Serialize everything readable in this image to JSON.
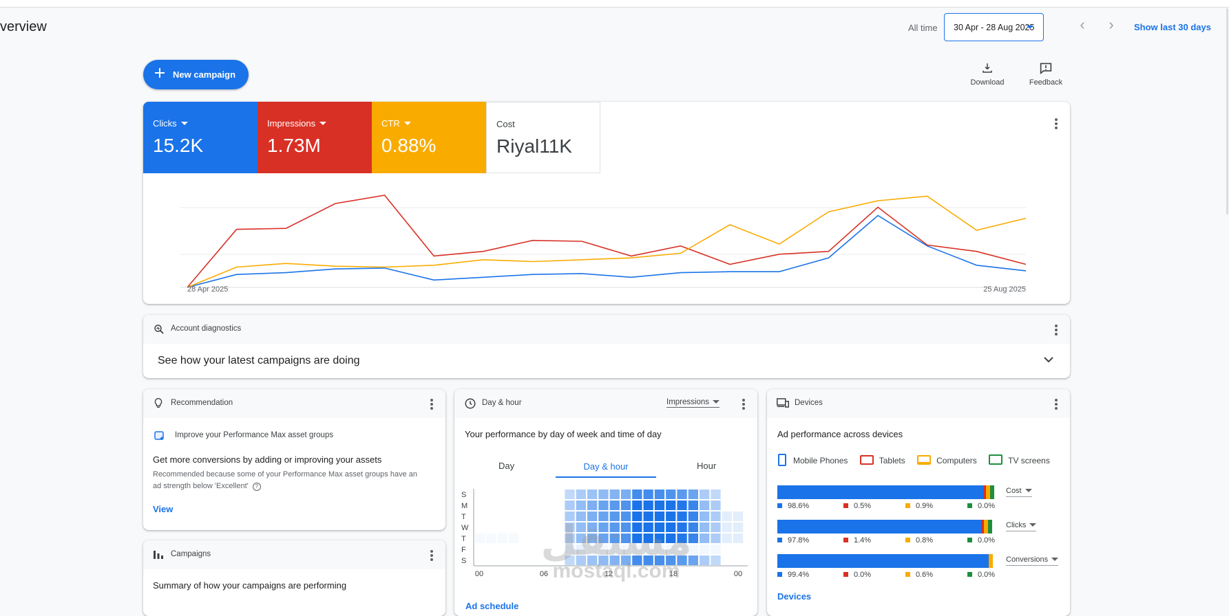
{
  "header": {
    "title": "verview",
    "all_time_label": "All time",
    "date_range": "30 Apr - 28 Aug 2025",
    "show_last_label": "Show last 30 days"
  },
  "toolbar": {
    "new_campaign_label": "New campaign",
    "download_label": "Download",
    "feedback_label": "Feedback"
  },
  "metrics": [
    {
      "name": "Clicks",
      "value": "15.2K",
      "color": "#1a73e8"
    },
    {
      "name": "Impressions",
      "value": "1.73M",
      "color": "#d93025"
    },
    {
      "name": "CTR",
      "value": "0.88%",
      "color": "#f9ab00"
    },
    {
      "name": "Cost",
      "value": "Riyal11K",
      "color": "#ffffff"
    }
  ],
  "chart_data": {
    "type": "line",
    "x_start_label": "28 Apr 2025",
    "x_end_label": "25 Aug 2025",
    "grid": true,
    "series": [
      {
        "name": "Clicks",
        "color": "#1a73e8",
        "values": [
          0,
          14,
          16,
          20,
          21,
          8,
          11,
          14,
          15,
          11,
          16,
          17,
          17,
          32,
          78,
          45,
          24,
          18
        ]
      },
      {
        "name": "Impressions",
        "color": "#d93025",
        "values": [
          0,
          63,
          64,
          91,
          100,
          34,
          39,
          51,
          50,
          34,
          45,
          25,
          36,
          39,
          87,
          46,
          39,
          25
        ]
      },
      {
        "name": "CTR",
        "color": "#f9ab00",
        "values": [
          0,
          22,
          26,
          23,
          22,
          24,
          30,
          28,
          30,
          32,
          37,
          68,
          47,
          82,
          94,
          99,
          62,
          75
        ]
      }
    ]
  },
  "diagnostics": {
    "title": "Account diagnostics",
    "summary": "See how your latest campaigns are doing"
  },
  "recommendation": {
    "title": "Recommendation",
    "item": "Improve your Performance Max asset groups",
    "headline": "Get more conversions by adding or improving your assets",
    "body_line1": "Recommended because some of your Performance Max asset groups have an",
    "body_line2": "ad strength below 'Excellent'",
    "link": "View"
  },
  "campaigns": {
    "title": "Campaigns",
    "summary": "Summary of how your campaigns are performing"
  },
  "dayhour": {
    "title": "Day & hour",
    "metric_select": "Impressions",
    "subtitle": "Your performance by day of week and time of day",
    "tabs": [
      "Day",
      "Day & hour",
      "Hour"
    ],
    "days": [
      "S",
      "M",
      "T",
      "W",
      "T",
      "F",
      "S"
    ],
    "hours": [
      "00",
      "06",
      "12",
      "18",
      "00"
    ],
    "link": "Ad schedule"
  },
  "devices": {
    "title": "Devices",
    "subtitle": "Ad performance across devices",
    "legend": [
      {
        "name": "Mobile Phones",
        "color": "#1a73e8"
      },
      {
        "name": "Tablets",
        "color": "#d93025"
      },
      {
        "name": "Computers",
        "color": "#f9ab00"
      },
      {
        "name": "TV screens",
        "color": "#1e8e3e"
      }
    ],
    "rows": [
      {
        "metric": "Cost",
        "shares": [
          98.6,
          0.5,
          0.9,
          0.0
        ],
        "labels": [
          "98.6%",
          "0.5%",
          "0.9%",
          "0.0%"
        ]
      },
      {
        "metric": "Clicks",
        "shares": [
          97.8,
          1.4,
          0.8,
          0.0
        ],
        "labels": [
          "97.8%",
          "1.4%",
          "0.8%",
          "0.0%"
        ]
      },
      {
        "metric": "Conversions",
        "shares": [
          99.4,
          0.0,
          0.6,
          0.0
        ],
        "labels": [
          "99.4%",
          "0.0%",
          "0.6%",
          "0.0%"
        ]
      }
    ],
    "link": "Devices"
  },
  "watermark": {
    "brand": "مستقل",
    "url": "mostaql.com"
  }
}
